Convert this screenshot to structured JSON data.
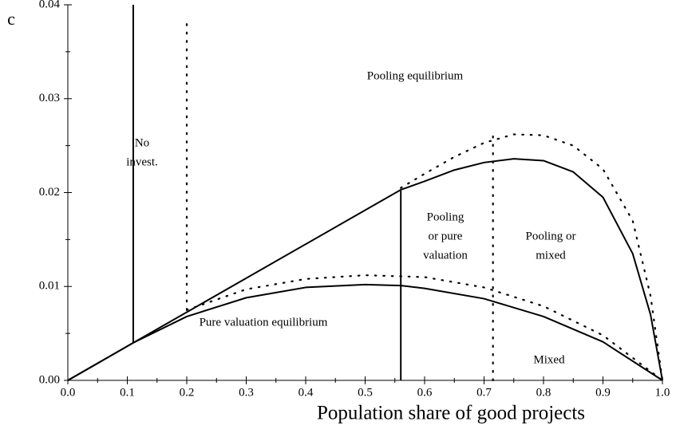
{
  "chart_data": {
    "type": "line",
    "ylabel": "c",
    "xlabel": "Population share of good projects",
    "xlim": [
      0,
      1
    ],
    "ylim": [
      0,
      0.04
    ],
    "xticks": [
      {
        "value": 0,
        "label": "0.0"
      },
      0.1,
      0.2,
      0.3,
      0.4,
      0.5,
      0.6,
      0.7,
      0.8,
      0.9,
      {
        "value": 1,
        "label": "1.0"
      }
    ],
    "yticks": [
      {
        "value": 0,
        "label": "0.00"
      },
      0.01,
      0.02,
      0.03,
      0.04
    ],
    "xminorticks": [
      0.05,
      0.15,
      0.25,
      0.35,
      0.45,
      0.55,
      0.65,
      0.75,
      0.85,
      0.95
    ],
    "yminorticks": [
      0.005,
      0.015,
      0.025,
      0.035
    ],
    "series": [
      {
        "style": "solid",
        "color": "#000000",
        "x": [
          0,
          0.11,
          0.56,
          0.6,
          0.65,
          0.7,
          0.75,
          0.8,
          0.85,
          0.9,
          0.95,
          0.98,
          1.0
        ],
        "values": [
          0,
          0.004,
          0.0203,
          0.0212,
          0.0224,
          0.0232,
          0.0236,
          0.0234,
          0.0222,
          0.0195,
          0.0135,
          0.007,
          0
        ]
      },
      {
        "style": "solid",
        "color": "#000000",
        "x": [
          0,
          0.11,
          0.2,
          0.3,
          0.4,
          0.5,
          0.56,
          0.6,
          0.7,
          0.8,
          0.9,
          1.0
        ],
        "values": [
          0,
          0.004,
          0.0068,
          0.0088,
          0.0099,
          0.0102,
          0.0101,
          0.0098,
          0.0087,
          0.0068,
          0.0041,
          0
        ]
      },
      {
        "style": "dotted",
        "color": "#000000",
        "x": [
          0.56,
          0.6,
          0.65,
          0.7,
          0.75,
          0.8,
          0.85,
          0.9,
          0.95,
          0.98,
          1.0
        ],
        "values": [
          0.0205,
          0.022,
          0.0238,
          0.0253,
          0.0262,
          0.0261,
          0.025,
          0.0225,
          0.017,
          0.009,
          0
        ]
      },
      {
        "style": "dotted",
        "color": "#000000",
        "x": [
          0.2,
          0.3,
          0.4,
          0.5,
          0.6,
          0.7,
          0.8,
          0.9,
          1.0
        ],
        "values": [
          0.0075,
          0.0097,
          0.0108,
          0.0112,
          0.011,
          0.0099,
          0.0079,
          0.0048,
          0
        ]
      },
      {
        "style": "solid",
        "color": "#000000",
        "x": [
          0.11,
          0.11
        ],
        "values": [
          0.004,
          0.04
        ]
      },
      {
        "style": "solid",
        "color": "#000000",
        "x": [
          0.56,
          0.56
        ],
        "values": [
          0,
          0.0202
        ]
      },
      {
        "style": "dotted",
        "color": "#000000",
        "x": [
          0.2,
          0.2
        ],
        "values": [
          0.0075,
          0.038
        ]
      },
      {
        "style": "dotted",
        "color": "#000000",
        "x": [
          0.715,
          0.715
        ],
        "values": [
          0,
          0.026
        ]
      }
    ],
    "annotations": [
      [
        "No",
        "invest."
      ],
      [
        "Pooling equilibrium"
      ],
      [
        "Pooling",
        "or pure",
        "valuation"
      ],
      [
        "Pooling or",
        "mixed"
      ],
      [
        "Pure valuation equilibrium"
      ],
      [
        "Mixed"
      ]
    ]
  }
}
